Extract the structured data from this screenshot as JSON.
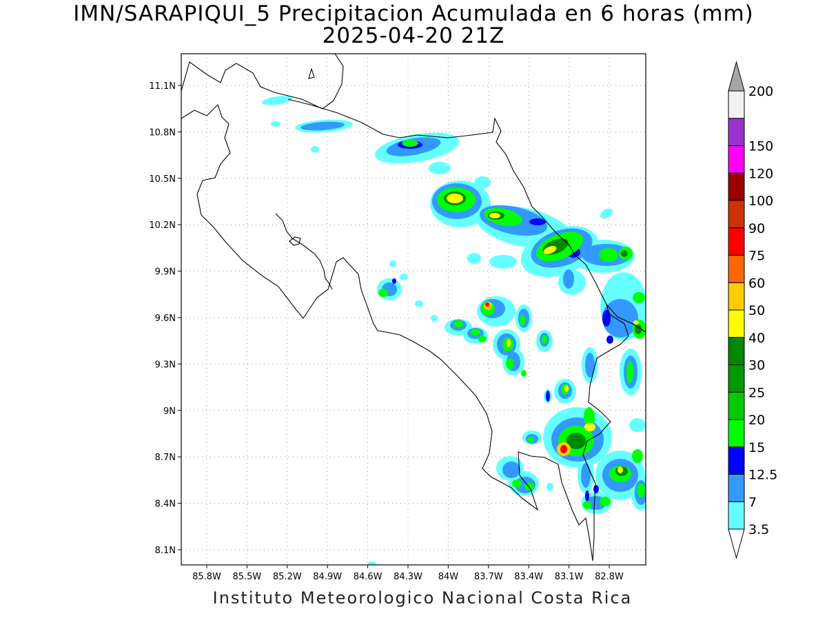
{
  "title": {
    "line1": "IMN/SARAPIQUI_5 Precipitacion Acumulada en 6 horas (mm)",
    "line2": "2025-04-20 21Z"
  },
  "credit": "Instituto Meteorologico Nacional Costa Rica",
  "map": {
    "lat_labels": [
      "11.1N",
      "10.8N",
      "10.5N",
      "10.2N",
      "9.9N",
      "9.6N",
      "9.3N",
      "9N",
      "8.7N",
      "8.4N",
      "8.1N"
    ],
    "lon_labels": [
      "85.8W",
      "85.5W",
      "85.2W",
      "84.9W",
      "84.6W",
      "84.3W",
      "84W",
      "83.7W",
      "83.4W",
      "83.1W",
      "82.8W"
    ]
  },
  "legend": {
    "levels": [
      {
        "label": "3.5",
        "color": "#66ffff"
      },
      {
        "label": "7",
        "color": "#3399ff"
      },
      {
        "label": "12.5",
        "color": "#0000ff"
      },
      {
        "label": "15",
        "color": "#00ff00"
      },
      {
        "label": "20",
        "color": "#00cc00"
      },
      {
        "label": "25",
        "color": "#009900"
      },
      {
        "label": "30",
        "color": "#008800"
      },
      {
        "label": "40",
        "color": "#ffff00"
      },
      {
        "label": "50",
        "color": "#ffcc00"
      },
      {
        "label": "60",
        "color": "#ff6600"
      },
      {
        "label": "75",
        "color": "#ff0000"
      },
      {
        "label": "90",
        "color": "#cc3300"
      },
      {
        "label": "100",
        "color": "#990000"
      },
      {
        "label": "120",
        "color": "#ff00ff"
      },
      {
        "label": "150",
        "color": "#9933cc"
      },
      {
        "label": "200",
        "color": "#f2f2f2"
      }
    ],
    "top_arrow_color": "#a6a6a6",
    "bottom_arrow_color": "#ffffff"
  }
}
